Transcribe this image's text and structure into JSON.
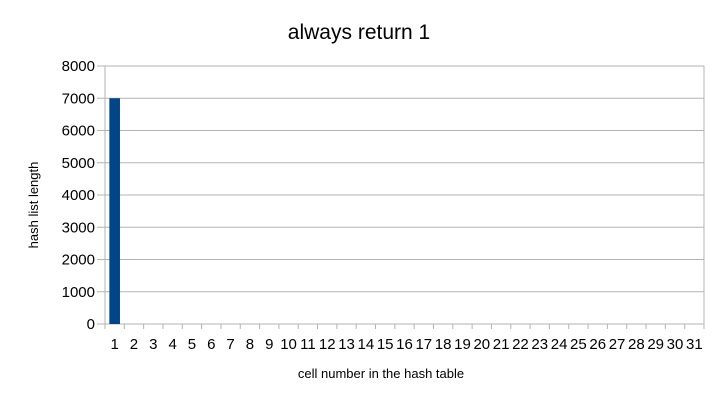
{
  "chart_data": {
    "type": "bar",
    "title": "always return 1",
    "xlabel": "cell number in the hash table",
    "ylabel": "hash list length",
    "categories": [
      "1",
      "2",
      "3",
      "4",
      "5",
      "6",
      "7",
      "8",
      "9",
      "10",
      "11",
      "12",
      "13",
      "14",
      "15",
      "16",
      "17",
      "18",
      "19",
      "20",
      "21",
      "22",
      "23",
      "24",
      "25",
      "26",
      "27",
      "28",
      "29",
      "30",
      "31"
    ],
    "series": [
      {
        "name": "hash list length",
        "values": [
          7000,
          0,
          0,
          0,
          0,
          0,
          0,
          0,
          0,
          0,
          0,
          0,
          0,
          0,
          0,
          0,
          0,
          0,
          0,
          0,
          0,
          0,
          0,
          0,
          0,
          0,
          0,
          0,
          0,
          0,
          0
        ],
        "color": "#004586"
      }
    ],
    "yticks": [
      0,
      1000,
      2000,
      3000,
      4000,
      5000,
      6000,
      7000,
      8000
    ],
    "ylim": [
      0,
      8000
    ],
    "grid": true,
    "legend": "none",
    "colors": {
      "grid": "#b3b3b3",
      "background": "#ffffff",
      "text": "#000000"
    }
  }
}
